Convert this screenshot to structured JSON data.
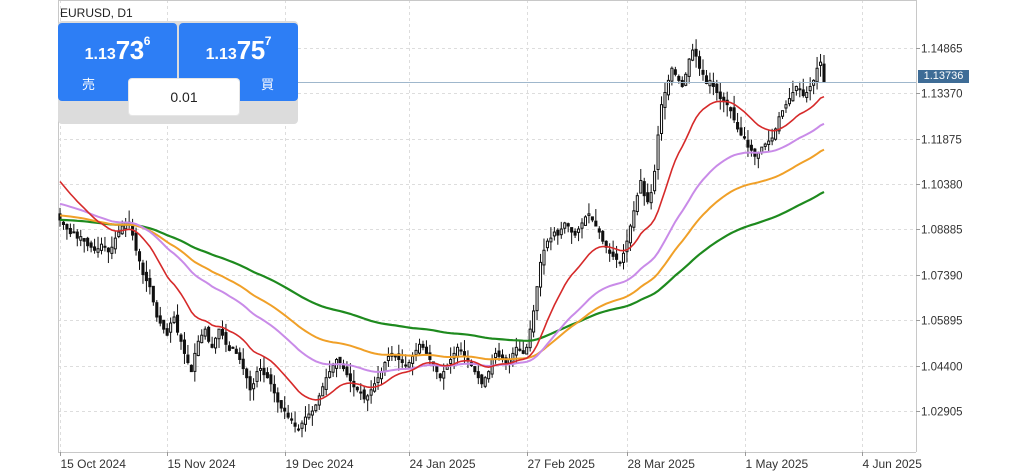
{
  "symbol": "EURUSD, D1",
  "trade_panel": {
    "sell": {
      "price_prefix": "1.13",
      "price_big": "73",
      "price_sup": "6",
      "label": "売"
    },
    "buy": {
      "price_prefix": "1.13",
      "price_big": "75",
      "price_sup": "7",
      "label": "買"
    },
    "volume": "0.01"
  },
  "current_price_label": "1.13736",
  "colors": {
    "candle": "#111111",
    "ma_red": "#d62a2a",
    "ma_violet": "#c98be8",
    "ma_orange": "#f0a028",
    "ma_green": "#1e8a1e",
    "button_blue": "#2d7ef5",
    "price_line": "#9fb7cc",
    "price_tag": "#3e6c96"
  },
  "chart_data": {
    "type": "candlestick",
    "title": "EURUSD, D1",
    "ylim": [
      1.0155,
      1.1645
    ],
    "y_ticks": [
      "1.14865",
      "1.13370",
      "1.11875",
      "1.10380",
      "1.08885",
      "1.07390",
      "1.05895",
      "1.04400",
      "1.02905"
    ],
    "x_ticks": [
      {
        "label": "15 Oct 2024",
        "day": 0
      },
      {
        "label": "15 Nov 2024",
        "day": 31
      },
      {
        "label": "19 Dec 2024",
        "day": 65
      },
      {
        "label": "24 Jan 2025",
        "day": 101
      },
      {
        "label": "27 Feb 2025",
        "day": 135
      },
      {
        "label": "28 Mar 2025",
        "day": 164
      },
      {
        "label": "1 May 2025",
        "day": 198
      },
      {
        "label": "4 Jun 2025",
        "day": 232
      }
    ],
    "grid": true,
    "last_price": 1.13736,
    "closes": [
      1.092,
      1.0905,
      1.089,
      1.0875,
      1.088,
      1.086,
      1.0865,
      1.085,
      1.0835,
      1.083,
      1.082,
      1.0825,
      1.084,
      1.083,
      1.0815,
      1.083,
      1.086,
      1.088,
      1.09,
      1.091,
      1.0905,
      1.087,
      1.082,
      1.0785,
      1.074,
      1.072,
      1.07,
      1.065,
      1.06,
      1.058,
      1.056,
      1.054,
      1.058,
      1.06,
      1.055,
      1.052,
      1.048,
      1.045,
      1.042,
      1.048,
      1.052,
      1.054,
      1.056,
      1.052,
      1.05,
      1.053,
      1.056,
      1.054,
      1.051,
      1.049,
      1.05,
      1.048,
      1.046,
      1.043,
      1.04,
      1.036,
      1.038,
      1.042,
      1.043,
      1.041,
      1.04,
      1.038,
      1.035,
      1.032,
      1.03,
      1.029,
      1.027,
      1.026,
      1.024,
      1.023,
      1.025,
      1.027,
      1.028,
      1.029,
      1.031,
      1.034,
      1.037,
      1.04,
      1.042,
      1.044,
      1.046,
      1.045,
      1.043,
      1.041,
      1.039,
      1.037,
      1.036,
      1.035,
      1.033,
      1.034,
      1.036,
      1.038,
      1.04,
      1.042,
      1.045,
      1.047,
      1.048,
      1.047,
      1.046,
      1.045,
      1.044,
      1.045,
      1.047,
      1.049,
      1.051,
      1.05,
      1.048,
      1.046,
      1.044,
      1.042,
      1.04,
      1.042,
      1.044,
      1.046,
      1.048,
      1.05,
      1.049,
      1.047,
      1.046,
      1.044,
      1.042,
      1.04,
      1.038,
      1.04,
      1.042,
      1.046,
      1.048,
      1.047,
      1.046,
      1.045,
      1.046,
      1.048,
      1.05,
      1.049,
      1.048,
      1.05,
      1.056,
      1.062,
      1.07,
      1.078,
      1.082,
      1.085,
      1.086,
      1.088,
      1.087,
      1.089,
      1.091,
      1.09,
      1.088,
      1.087,
      1.089,
      1.091,
      1.093,
      1.094,
      1.092,
      1.09,
      1.088,
      1.085,
      1.083,
      1.081,
      1.08,
      1.079,
      1.078,
      1.081,
      1.085,
      1.09,
      1.095,
      1.1,
      1.105,
      1.1,
      1.098,
      1.101,
      1.108,
      1.12,
      1.13,
      1.134,
      1.138,
      1.142,
      1.14,
      1.138,
      1.136,
      1.14,
      1.145,
      1.148,
      1.146,
      1.142,
      1.14,
      1.137,
      1.138,
      1.136,
      1.134,
      1.132,
      1.131,
      1.13,
      1.128,
      1.125,
      1.122,
      1.12,
      1.119,
      1.116,
      1.115,
      1.113,
      1.114,
      1.116,
      1.117,
      1.118,
      1.119,
      1.122,
      1.126,
      1.128,
      1.13,
      1.132,
      1.134,
      1.136,
      1.135,
      1.133,
      1.134,
      1.136,
      1.138,
      1.142,
      1.144,
      1.1374
    ]
  }
}
